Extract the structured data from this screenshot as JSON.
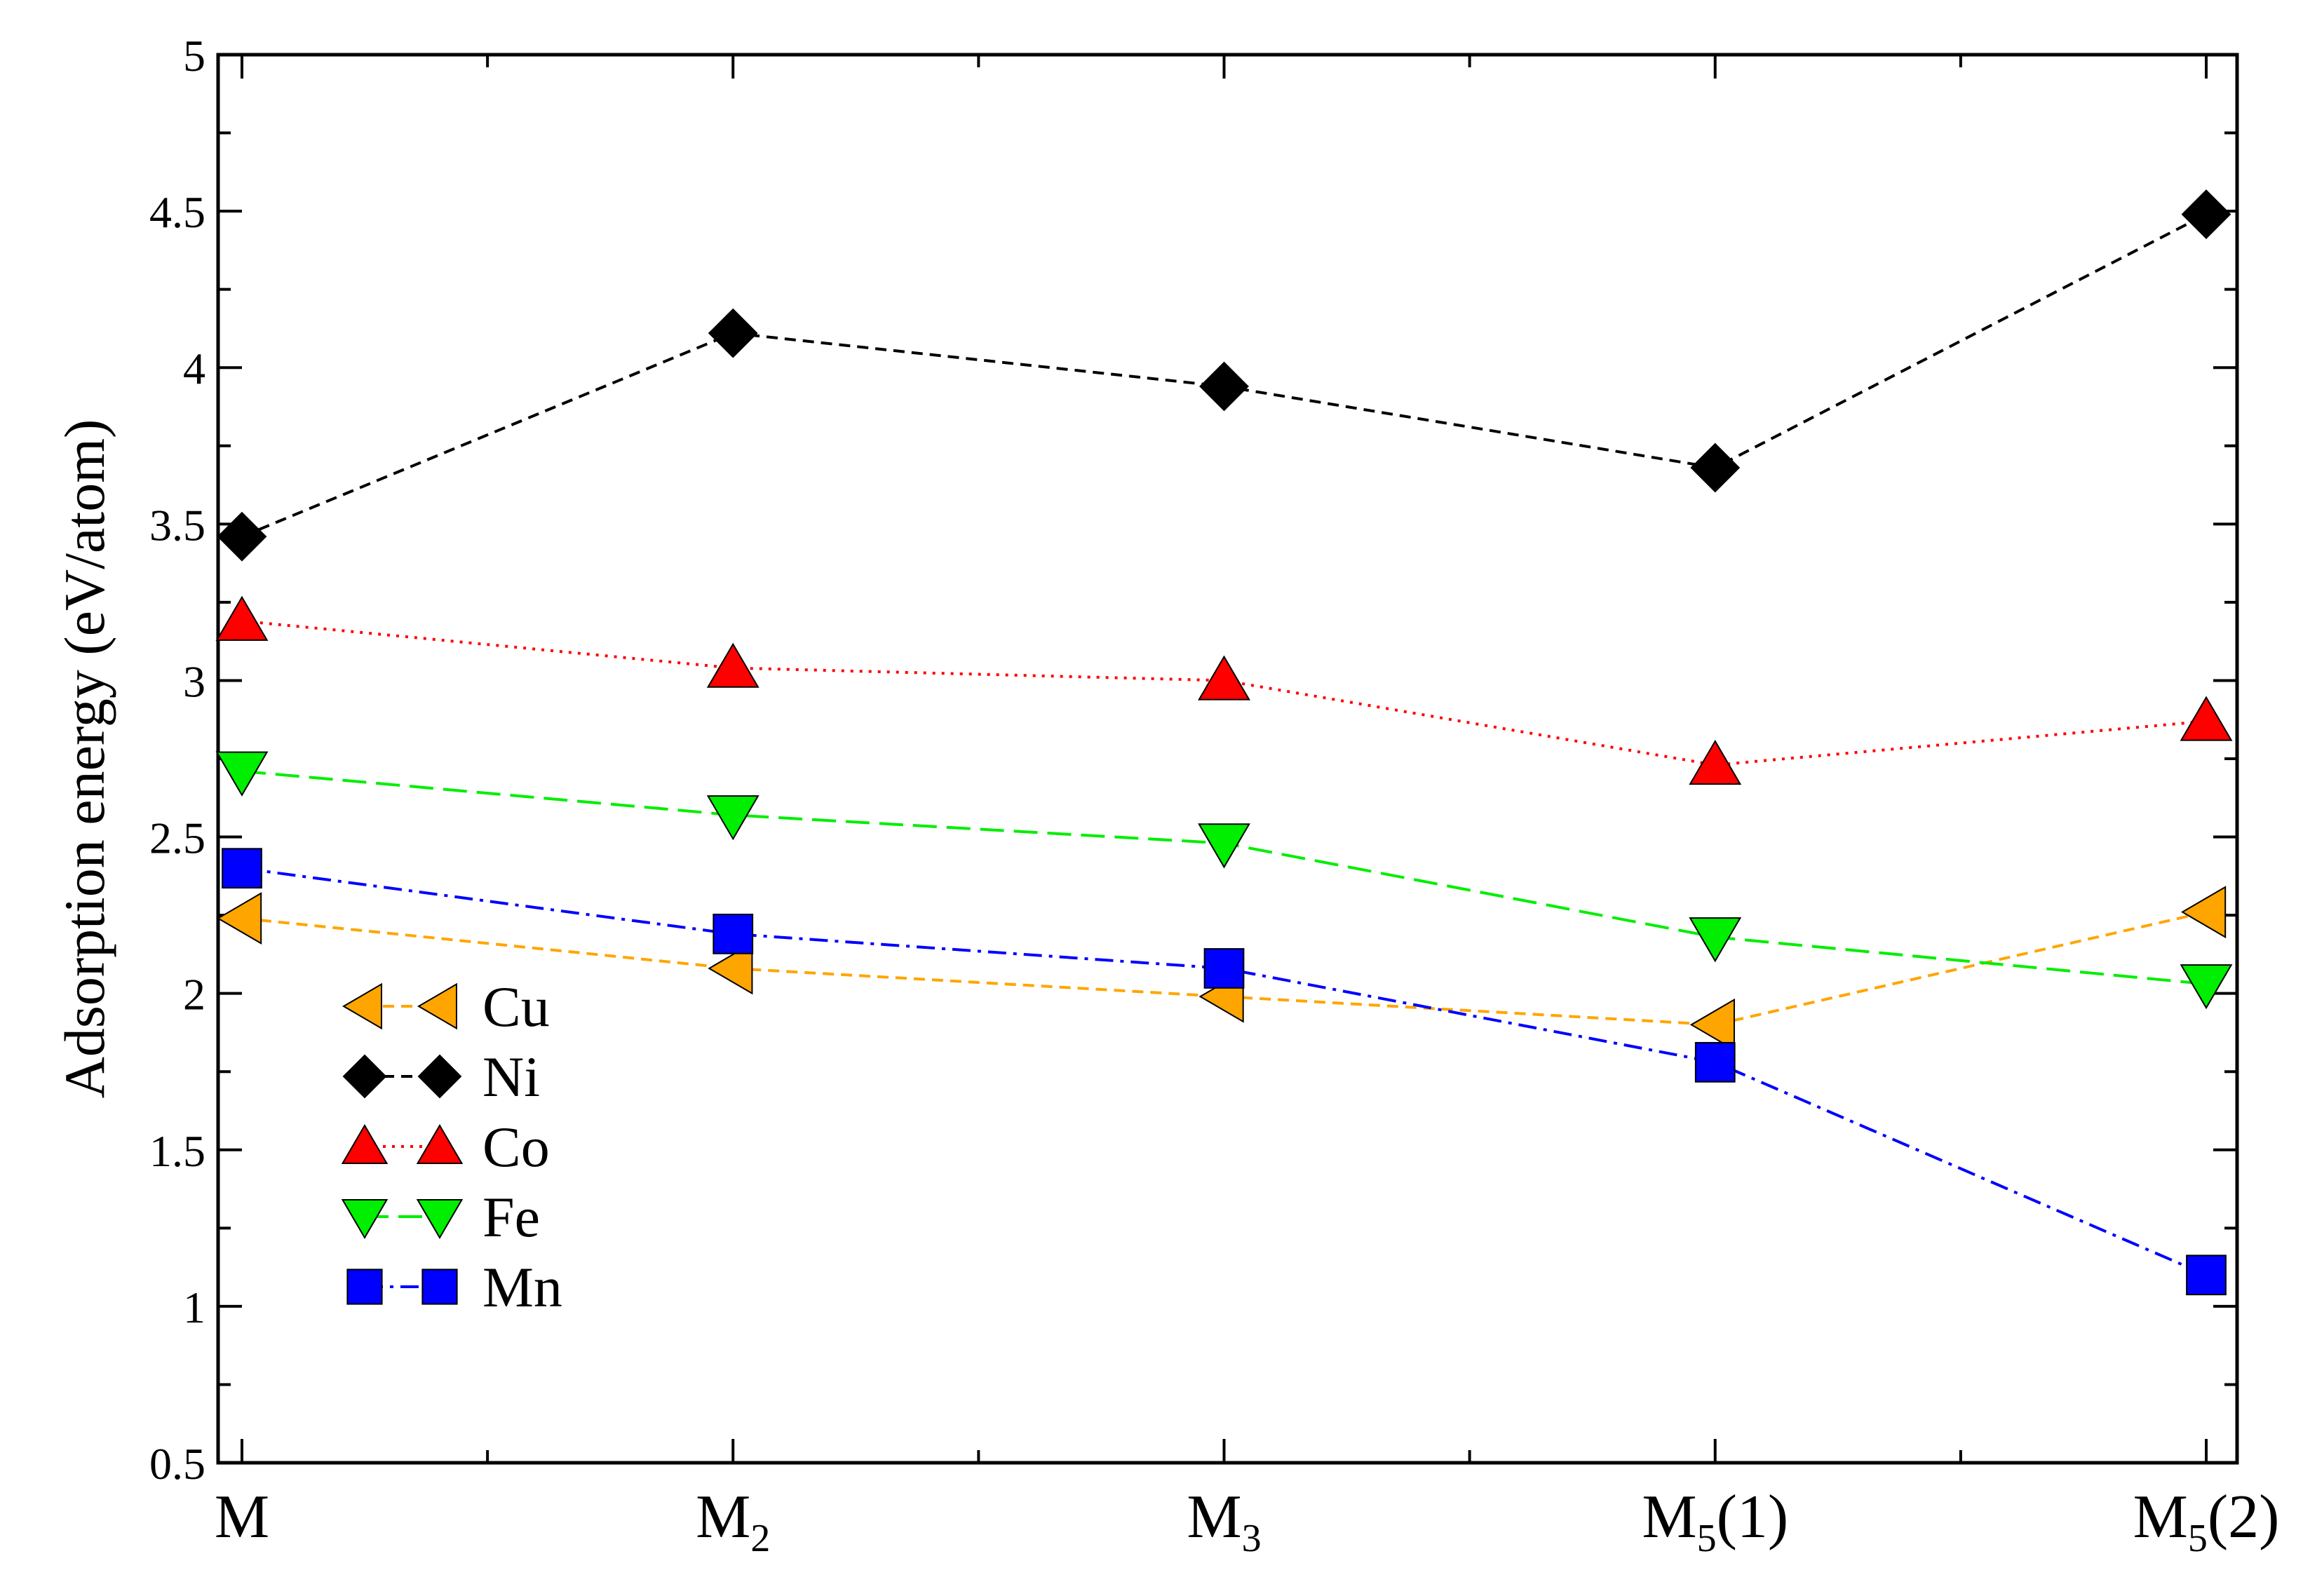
{
  "chart_data": {
    "type": "line",
    "title": "",
    "xlabel": "",
    "ylabel": "Adsorption energy (eV/atom)",
    "ylim": [
      0.5,
      5
    ],
    "ytick_values": [
      0.5,
      1,
      1.5,
      2,
      2.5,
      3,
      3.5,
      4,
      4.5,
      5
    ],
    "ytick_labels": [
      "0.5",
      "1",
      "1.5",
      "2",
      "2.5",
      "3",
      "3.5",
      "4",
      "4.5",
      "5"
    ],
    "categories": [
      {
        "base": "M",
        "sub": "",
        "suffix": ""
      },
      {
        "base": "M",
        "sub": "2",
        "suffix": ""
      },
      {
        "base": "M",
        "sub": "3",
        "suffix": ""
      },
      {
        "base": "M",
        "sub": "5",
        "suffix": "(1)"
      },
      {
        "base": "M",
        "sub": "5",
        "suffix": "(2)"
      }
    ],
    "grid": false,
    "legend_position": "lower-left",
    "series": [
      {
        "name": "Cu",
        "color": "#ffa500",
        "marker": "triangle-left",
        "dash": "dashed",
        "values": [
          2.24,
          2.08,
          1.99,
          1.9,
          2.26
        ]
      },
      {
        "name": "Ni",
        "color": "#000000",
        "marker": "diamond",
        "dash": "dashed",
        "values": [
          3.46,
          4.11,
          3.94,
          3.68,
          4.49
        ]
      },
      {
        "name": "Co",
        "color": "#ff0000",
        "marker": "triangle-up",
        "dash": "dotted",
        "values": [
          3.19,
          3.04,
          3.0,
          2.73,
          2.87
        ]
      },
      {
        "name": "Fe",
        "color": "#00ee00",
        "marker": "triangle-down",
        "dash": "longdash",
        "values": [
          2.71,
          2.57,
          2.48,
          2.18,
          2.03
        ]
      },
      {
        "name": "Mn",
        "color": "#0000ff",
        "marker": "square",
        "dash": "dashdot",
        "values": [
          2.4,
          2.19,
          2.08,
          1.78,
          1.1
        ]
      }
    ]
  }
}
